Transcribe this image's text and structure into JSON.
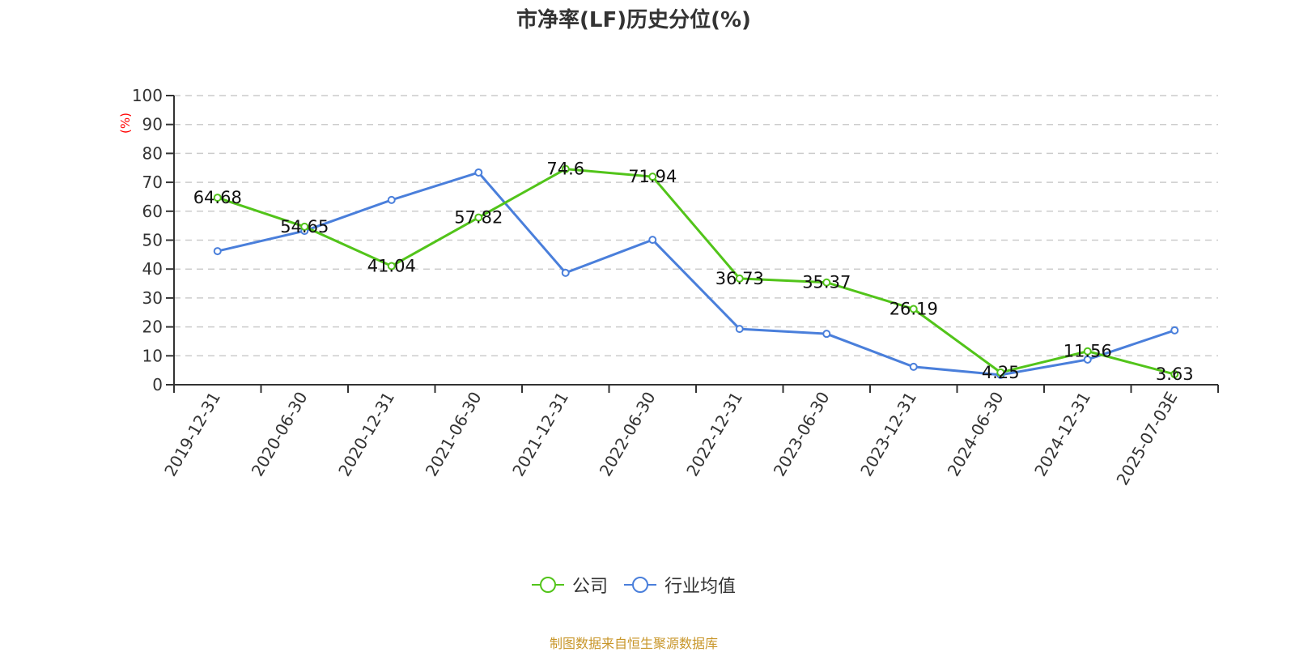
{
  "chart_data": {
    "type": "line",
    "title": "市净率(LF)历史分位(%)",
    "xlabel": "",
    "ylabel": "(%)",
    "ylim": [
      0,
      100
    ],
    "yticks": [
      0,
      10,
      20,
      30,
      40,
      50,
      60,
      70,
      80,
      90,
      100
    ],
    "grid": true,
    "legend_position": "bottom",
    "categories": [
      "2019-12-31",
      "2020-06-30",
      "2020-12-31",
      "2021-06-30",
      "2021-12-31",
      "2022-06-30",
      "2022-12-31",
      "2023-06-30",
      "2023-12-31",
      "2024-06-30",
      "2024-12-31",
      "2025-07-03E"
    ],
    "series": [
      {
        "name": "公司",
        "color": "#52c41a",
        "labeled": true,
        "values": [
          64.68,
          54.65,
          41.04,
          57.82,
          74.6,
          71.94,
          36.73,
          35.37,
          26.19,
          4.25,
          11.56,
          3.63
        ]
      },
      {
        "name": "行业均值",
        "color": "#4a7fdb",
        "labeled": false,
        "values": [
          46.2,
          53.2,
          63.9,
          73.4,
          38.7,
          50.1,
          19.3,
          17.6,
          6.2,
          3.4,
          8.7,
          18.8
        ]
      }
    ]
  },
  "legend": {
    "items": [
      {
        "label": "公司",
        "color": "#52c41a"
      },
      {
        "label": "行业均值",
        "color": "#4a7fdb"
      }
    ]
  },
  "source": "制图数据来自恒生聚源数据库",
  "colors": {
    "axis": "#333333",
    "grid": "#cccccc",
    "ylabel": "#ff0000",
    "source": "#c8962a"
  }
}
